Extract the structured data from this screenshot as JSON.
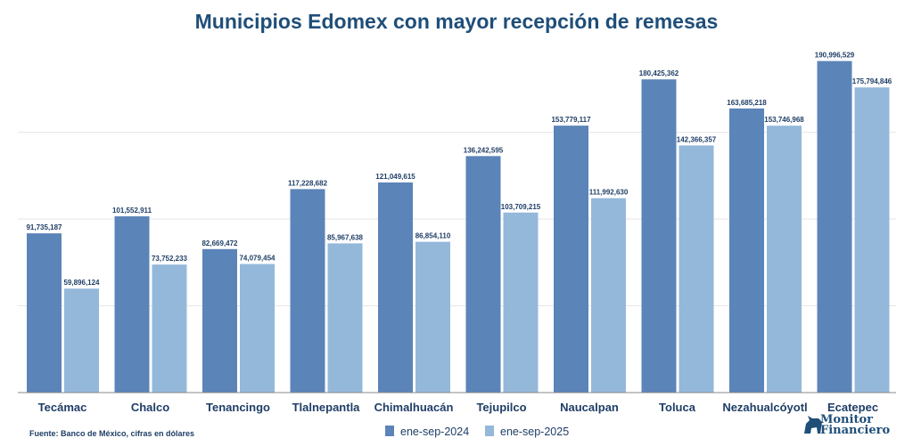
{
  "chart_data": {
    "type": "bar",
    "title": "Municipios Edomex con mayor recepción de remesas",
    "categories": [
      "Tecámac",
      "Chalco",
      "Tenancingo",
      "Tlalnepantla",
      "Chimalhuacán",
      "Tejupilco",
      "Naucalpan",
      "Toluca",
      "Nezahualcóyotl",
      "Ecatepec"
    ],
    "series": [
      {
        "name": "ene-sep-2024",
        "color": "#5b84b8",
        "values": [
          91735187,
          101552911,
          82669472,
          117228682,
          121049615,
          136242595,
          153779117,
          180425362,
          163685218,
          190996529
        ]
      },
      {
        "name": "ene-sep-2025",
        "color": "#94b8da",
        "values": [
          59896124,
          73752233,
          74079454,
          85967638,
          86854110,
          103709215,
          111992630,
          142366357,
          153746968,
          175794846
        ]
      }
    ],
    "ylim": [
      0,
      200000000
    ],
    "grid": true,
    "legend": "bottom",
    "source": "Fuente: Banco de México, cifras en dólares",
    "logo": "Monitor Financiero"
  }
}
